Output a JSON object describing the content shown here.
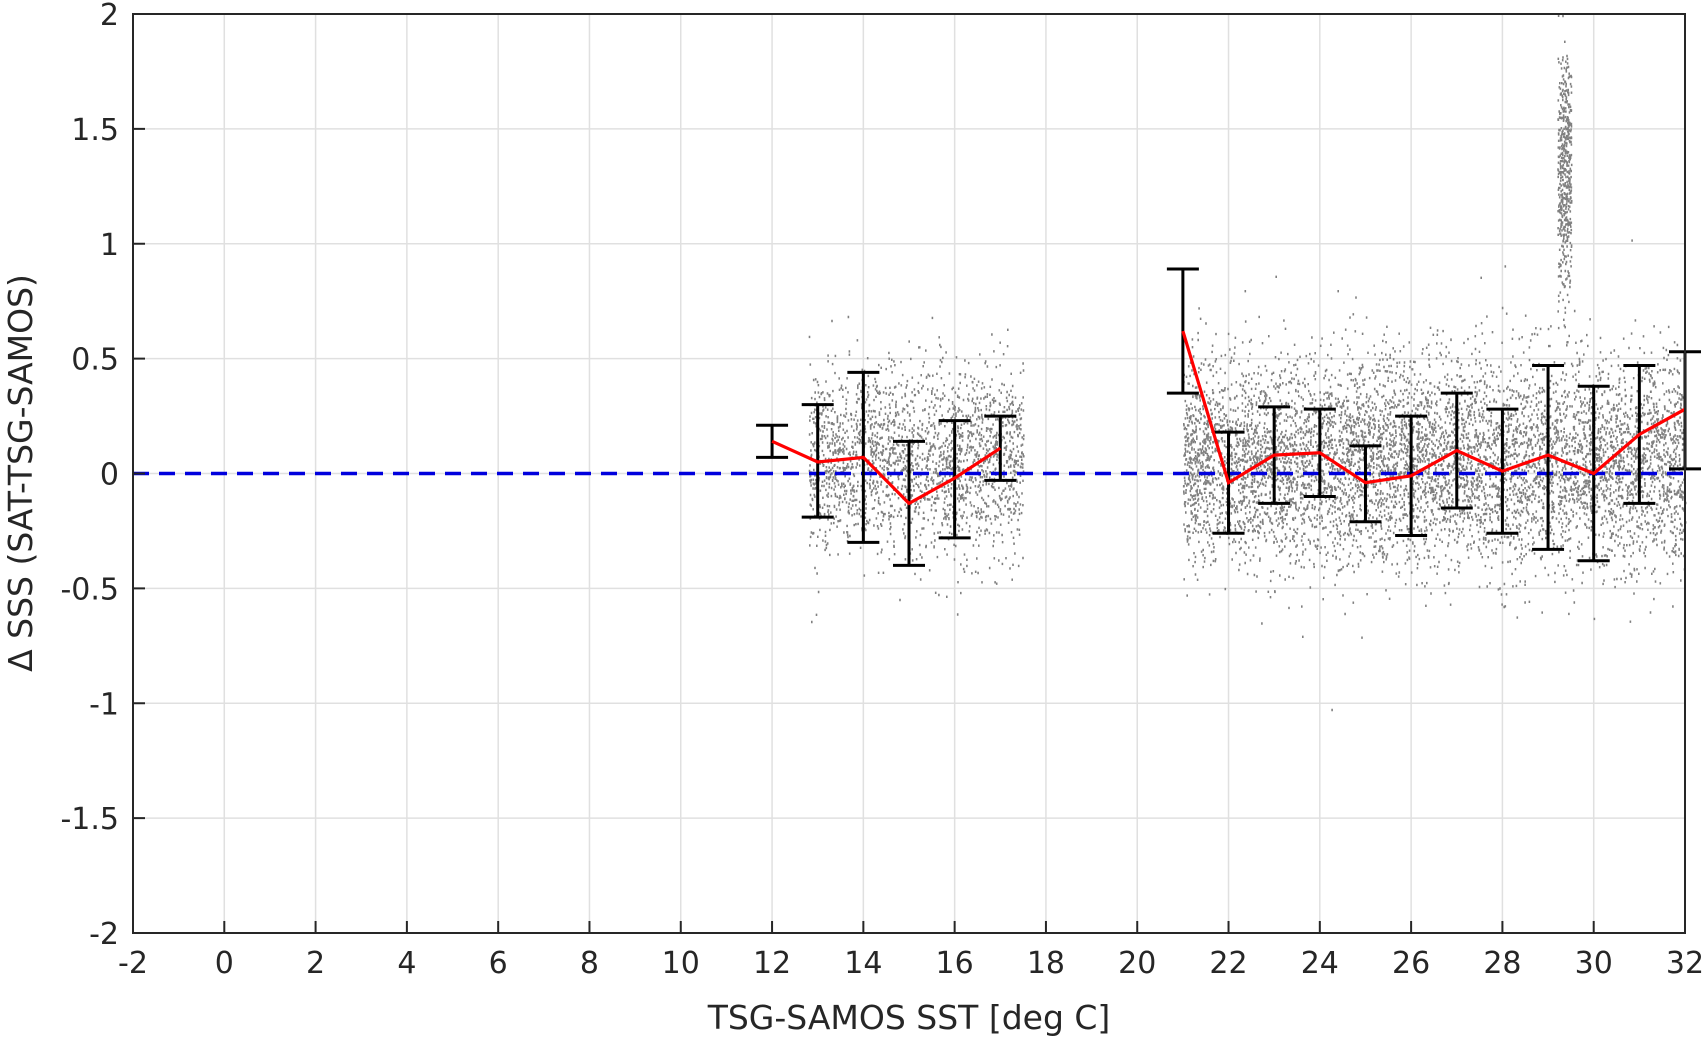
{
  "chart_data": {
    "type": "scatter",
    "title": "",
    "xlabel": "TSG-SAMOS SST [deg C]",
    "ylabel": "Δ SSS (SAT-TSG-SAMOS)",
    "xlim": [
      -2,
      32
    ],
    "ylim": [
      -2,
      2
    ],
    "xticks": [
      -2,
      0,
      2,
      4,
      6,
      8,
      10,
      12,
      14,
      16,
      18,
      20,
      22,
      24,
      26,
      28,
      30,
      32
    ],
    "xtick_labels": [
      "-2",
      "0",
      "2",
      "4",
      "6",
      "8",
      "10",
      "12",
      "14",
      "16",
      "18",
      "20",
      "22",
      "24",
      "26",
      "28",
      "30",
      "32"
    ],
    "yticks": [
      -2,
      -1.5,
      -1,
      -0.5,
      0,
      0.5,
      1,
      1.5,
      2
    ],
    "ytick_labels": [
      "-2",
      "-1.5",
      "-1",
      "-0.5",
      "0",
      "0.5",
      "1",
      "1.5",
      "2"
    ],
    "grid": true,
    "colors": {
      "scatter": "#808080",
      "mean_line": "#ff0000",
      "error_bars": "#000000",
      "zero_line": "#0000dd",
      "grid": "#e0e0e0",
      "axes": "#262626"
    },
    "scatter_clusters": [
      {
        "x_range": [
          12.8,
          17.5
        ],
        "y_center": 0.05,
        "y_spread": 0.4,
        "points": 2200,
        "y_max": 0.95,
        "y_min": -0.65
      },
      {
        "x_range": [
          21.0,
          32.0
        ],
        "y_center": 0.05,
        "y_spread": 0.45,
        "points": 7000,
        "y_max": 1.2,
        "y_min": -1.1
      },
      {
        "x_range": [
          29.2,
          29.5
        ],
        "y_center": 1.3,
        "y_spread": 0.55,
        "points": 500,
        "y_max": 2.0,
        "y_min": 0.4
      }
    ],
    "series": [
      {
        "kind": "mean_with_error_bars",
        "x": [
          12,
          13,
          14,
          15,
          16,
          17,
          21,
          22,
          23,
          24,
          25,
          26,
          27,
          28,
          29,
          30,
          31,
          32
        ],
        "y": [
          0.14,
          0.05,
          0.07,
          -0.13,
          -0.02,
          0.11,
          0.62,
          -0.04,
          0.08,
          0.09,
          -0.04,
          -0.01,
          0.1,
          0.01,
          0.08,
          0.0,
          0.17,
          0.28
        ],
        "err_low": [
          0.07,
          -0.19,
          -0.3,
          -0.4,
          -0.28,
          -0.03,
          0.35,
          -0.26,
          -0.13,
          -0.1,
          -0.21,
          -0.27,
          -0.15,
          -0.26,
          -0.33,
          -0.38,
          -0.13,
          0.02
        ],
        "err_high": [
          0.21,
          0.3,
          0.44,
          0.14,
          0.23,
          0.25,
          0.89,
          0.18,
          0.29,
          0.28,
          0.12,
          0.25,
          0.35,
          0.28,
          0.47,
          0.38,
          0.47,
          0.53
        ]
      }
    ],
    "reference_line": {
      "y": 0,
      "style": "dashed"
    }
  }
}
